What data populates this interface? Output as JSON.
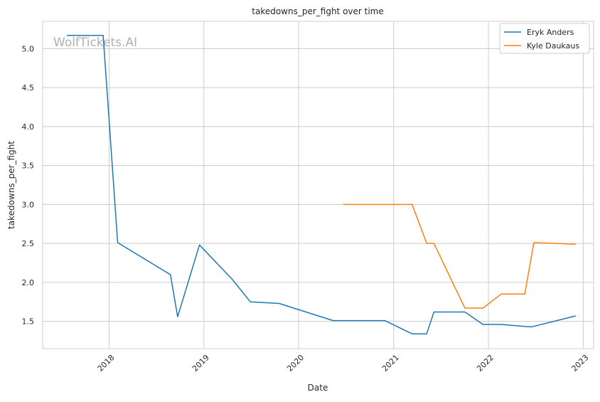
{
  "watermark": "WolfTickets.AI",
  "chart_data": {
    "type": "line",
    "title": "takedowns_per_fight over time",
    "xlabel": "Date",
    "ylabel": "takedowns_per_fight",
    "x_type": "date",
    "xlim": [
      "2017-04-20",
      "2023-02-10"
    ],
    "ylim": [
      1.15,
      5.35
    ],
    "x_ticks": [
      {
        "date": "2018-01-01",
        "label": "2018"
      },
      {
        "date": "2019-01-01",
        "label": "2019"
      },
      {
        "date": "2020-01-01",
        "label": "2020"
      },
      {
        "date": "2021-01-01",
        "label": "2021"
      },
      {
        "date": "2022-01-01",
        "label": "2022"
      },
      {
        "date": "2023-01-01",
        "label": "2023"
      }
    ],
    "y_ticks": [
      "1.5",
      "2.0",
      "2.5",
      "3.0",
      "3.5",
      "4.0",
      "4.5",
      "5.0"
    ],
    "grid": true,
    "legend_position": "top-right",
    "series": [
      {
        "name": "Eryk Anders",
        "color": "#1f77b4",
        "points": [
          {
            "x": "2017-07-22",
            "y": 5.17
          },
          {
            "x": "2017-12-09",
            "y": 5.17
          },
          {
            "x": "2018-02-03",
            "y": 2.51
          },
          {
            "x": "2018-08-25",
            "y": 2.1
          },
          {
            "x": "2018-09-22",
            "y": 1.56
          },
          {
            "x": "2018-12-15",
            "y": 2.48
          },
          {
            "x": "2019-04-20",
            "y": 2.04
          },
          {
            "x": "2019-06-29",
            "y": 1.75
          },
          {
            "x": "2019-10-18",
            "y": 1.73
          },
          {
            "x": "2020-05-13",
            "y": 1.51
          },
          {
            "x": "2020-11-28",
            "y": 1.51
          },
          {
            "x": "2021-03-13",
            "y": 1.34
          },
          {
            "x": "2021-05-08",
            "y": 1.34
          },
          {
            "x": "2021-06-05",
            "y": 1.62
          },
          {
            "x": "2021-10-02",
            "y": 1.62
          },
          {
            "x": "2021-12-11",
            "y": 1.46
          },
          {
            "x": "2022-02-19",
            "y": 1.46
          },
          {
            "x": "2022-06-04",
            "y": 1.43
          },
          {
            "x": "2022-06-18",
            "y": 1.43
          },
          {
            "x": "2022-12-03",
            "y": 1.57
          }
        ]
      },
      {
        "name": "Kyle Daukaus",
        "color": "#ff7f0e",
        "points": [
          {
            "x": "2020-06-20",
            "y": 3.0
          },
          {
            "x": "2021-03-13",
            "y": 3.0
          },
          {
            "x": "2021-05-08",
            "y": 2.5
          },
          {
            "x": "2021-06-05",
            "y": 2.5
          },
          {
            "x": "2021-10-02",
            "y": 1.67
          },
          {
            "x": "2021-12-11",
            "y": 1.67
          },
          {
            "x": "2022-02-19",
            "y": 1.85
          },
          {
            "x": "2022-05-21",
            "y": 1.85
          },
          {
            "x": "2022-06-25",
            "y": 2.51
          },
          {
            "x": "2022-12-03",
            "y": 2.49
          }
        ]
      }
    ]
  }
}
